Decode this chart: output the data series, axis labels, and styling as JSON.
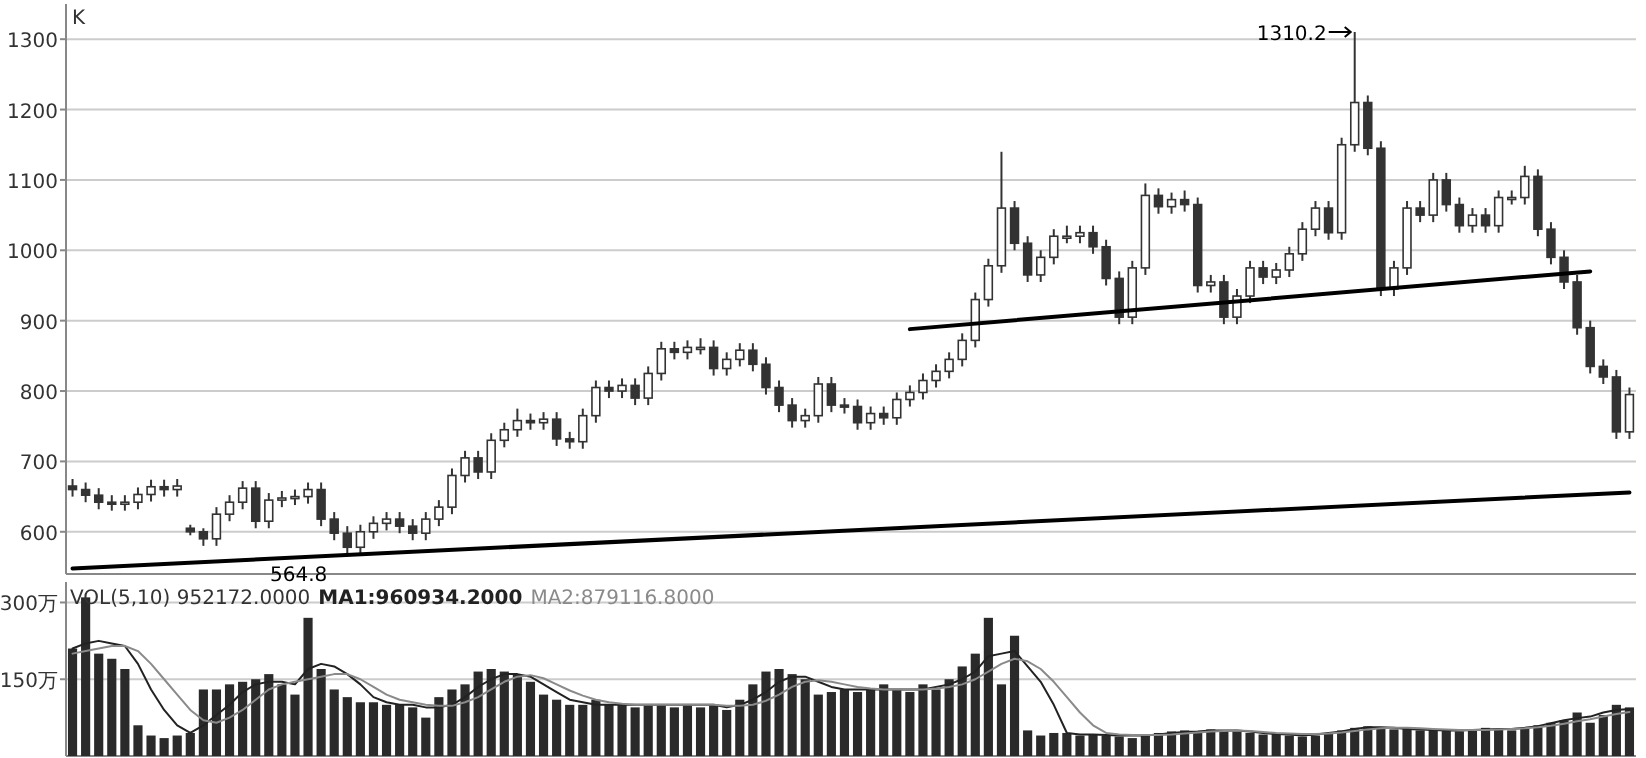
{
  "chart_data": [
    {
      "type": "candlestick",
      "ylabel": "K",
      "color": "#333333",
      "grid": "y",
      "ylim": [
        540,
        1350
      ],
      "yticks": [
        600,
        700,
        800,
        900,
        1000,
        1100,
        1200,
        1300
      ],
      "categories": [
        null,
        null,
        null,
        null,
        null,
        null,
        null,
        null,
        null,
        null,
        null,
        null,
        null,
        null,
        null,
        null,
        null,
        null,
        null,
        null,
        null,
        null,
        null,
        null,
        null,
        null,
        null,
        null,
        null,
        null,
        null,
        null,
        null,
        null,
        null,
        null,
        null,
        null,
        null,
        null,
        null,
        null,
        null,
        null,
        null,
        null,
        null,
        null,
        null,
        null,
        null,
        null,
        null,
        null,
        null,
        null,
        null,
        null,
        null,
        null,
        null,
        null,
        null,
        null,
        null,
        null,
        null,
        null,
        null,
        null,
        null,
        null,
        null,
        null,
        null,
        null,
        null,
        null,
        null,
        null,
        null,
        null,
        null,
        null,
        null,
        null,
        null,
        null,
        null,
        null,
        null,
        null,
        null,
        null,
        null,
        null,
        null,
        null,
        null,
        null,
        null,
        null,
        null,
        null,
        null,
        null,
        null,
        null,
        null,
        null,
        null,
        null,
        null,
        null,
        null,
        null,
        null,
        null,
        null,
        null
      ],
      "ohlc": [
        [
          665,
          675,
          650,
          660
        ],
        [
          660,
          670,
          642,
          652
        ],
        [
          652,
          662,
          632,
          642
        ],
        [
          642,
          652,
          630,
          640
        ],
        [
          640,
          652,
          630,
          642
        ],
        [
          642,
          663,
          632,
          653
        ],
        [
          653,
          674,
          643,
          664
        ],
        [
          664,
          674,
          650,
          660
        ],
        [
          660,
          675,
          650,
          665
        ],
        [
          605,
          610,
          595,
          600
        ],
        [
          600,
          605,
          580,
          590
        ],
        [
          590,
          635,
          580,
          625
        ],
        [
          625,
          652,
          615,
          642
        ],
        [
          642,
          672,
          632,
          662
        ],
        [
          662,
          672,
          605,
          615
        ],
        [
          615,
          655,
          605,
          645
        ],
        [
          645,
          658,
          635,
          648
        ],
        [
          648,
          660,
          638,
          650
        ],
        [
          650,
          670,
          640,
          660
        ],
        [
          660,
          670,
          608,
          618
        ],
        [
          618,
          628,
          588,
          598
        ],
        [
          598,
          608,
          564.8,
          578
        ],
        [
          578,
          610,
          568,
          600
        ],
        [
          600,
          622,
          590,
          612
        ],
        [
          612,
          628,
          602,
          618
        ],
        [
          618,
          628,
          598,
          608
        ],
        [
          608,
          618,
          588,
          598
        ],
        [
          598,
          628,
          588,
          618
        ],
        [
          618,
          645,
          608,
          635
        ],
        [
          635,
          690,
          625,
          680
        ],
        [
          680,
          715,
          670,
          705
        ],
        [
          705,
          715,
          675,
          685
        ],
        [
          685,
          740,
          675,
          730
        ],
        [
          730,
          755,
          720,
          745
        ],
        [
          745,
          775,
          735,
          758
        ],
        [
          758,
          768,
          745,
          755
        ],
        [
          755,
          770,
          745,
          760
        ],
        [
          760,
          770,
          722,
          732
        ],
        [
          732,
          742,
          718,
          728
        ],
        [
          728,
          775,
          718,
          765
        ],
        [
          765,
          815,
          755,
          805
        ],
        [
          805,
          815,
          790,
          800
        ],
        [
          800,
          818,
          790,
          808
        ],
        [
          808,
          818,
          780,
          790
        ],
        [
          790,
          835,
          780,
          825
        ],
        [
          825,
          870,
          815,
          860
        ],
        [
          860,
          870,
          845,
          855
        ],
        [
          855,
          872,
          845,
          862
        ],
        [
          862,
          875,
          852,
          862
        ],
        [
          862,
          872,
          822,
          832
        ],
        [
          832,
          855,
          822,
          845
        ],
        [
          845,
          868,
          835,
          858
        ],
        [
          858,
          868,
          828,
          838
        ],
        [
          838,
          848,
          795,
          805
        ],
        [
          805,
          815,
          770,
          780
        ],
        [
          780,
          790,
          748,
          758
        ],
        [
          758,
          775,
          748,
          765
        ],
        [
          765,
          820,
          755,
          810
        ],
        [
          810,
          820,
          770,
          780
        ],
        [
          780,
          790,
          768,
          778
        ],
        [
          778,
          788,
          745,
          755
        ],
        [
          755,
          778,
          745,
          768
        ],
        [
          768,
          778,
          752,
          762
        ],
        [
          762,
          798,
          752,
          788
        ],
        [
          788,
          808,
          778,
          798
        ],
        [
          798,
          825,
          788,
          815
        ],
        [
          815,
          838,
          805,
          828
        ],
        [
          828,
          855,
          818,
          845
        ],
        [
          845,
          882,
          835,
          872
        ],
        [
          872,
          940,
          862,
          930
        ],
        [
          930,
          988,
          920,
          978
        ],
        [
          978,
          1140,
          968,
          1060
        ],
        [
          1060,
          1070,
          1000,
          1010
        ],
        [
          1010,
          1020,
          955,
          965
        ],
        [
          965,
          1000,
          955,
          990
        ],
        [
          990,
          1030,
          980,
          1020
        ],
        [
          1020,
          1035,
          1010,
          1020
        ],
        [
          1020,
          1035,
          1010,
          1025
        ],
        [
          1025,
          1035,
          995,
          1005
        ],
        [
          1005,
          1015,
          950,
          960
        ],
        [
          960,
          970,
          895,
          905
        ],
        [
          905,
          985,
          895,
          975
        ],
        [
          975,
          1095,
          965,
          1078
        ],
        [
          1078,
          1088,
          1052,
          1062
        ],
        [
          1062,
          1082,
          1052,
          1072
        ],
        [
          1072,
          1085,
          1055,
          1065
        ],
        [
          1065,
          1075,
          940,
          950
        ],
        [
          950,
          965,
          940,
          955
        ],
        [
          955,
          965,
          895,
          905
        ],
        [
          905,
          945,
          895,
          935
        ],
        [
          935,
          985,
          925,
          975
        ],
        [
          975,
          985,
          952,
          962
        ],
        [
          962,
          982,
          952,
          972
        ],
        [
          972,
          1005,
          962,
          995
        ],
        [
          995,
          1040,
          985,
          1030
        ],
        [
          1030,
          1070,
          1020,
          1060
        ],
        [
          1060,
          1070,
          1015,
          1025
        ],
        [
          1025,
          1160,
          1015,
          1150
        ],
        [
          1150,
          1310.2,
          1140,
          1210
        ],
        [
          1210,
          1220,
          1135,
          1145
        ],
        [
          1145,
          1155,
          935,
          945
        ],
        [
          945,
          985,
          935,
          975
        ],
        [
          975,
          1070,
          965,
          1060
        ],
        [
          1060,
          1070,
          1040,
          1050
        ],
        [
          1050,
          1110,
          1040,
          1100
        ],
        [
          1100,
          1110,
          1055,
          1065
        ],
        [
          1065,
          1075,
          1025,
          1035
        ],
        [
          1035,
          1060,
          1025,
          1050
        ],
        [
          1050,
          1060,
          1025,
          1035
        ],
        [
          1035,
          1085,
          1025,
          1075
        ],
        [
          1075,
          1085,
          1065,
          1075
        ],
        [
          1075,
          1120,
          1065,
          1105
        ],
        [
          1105,
          1115,
          1020,
          1030
        ],
        [
          1030,
          1040,
          980,
          990
        ],
        [
          990,
          1000,
          945,
          955
        ],
        [
          955,
          965,
          880,
          890
        ],
        [
          890,
          900,
          825,
          835
        ],
        [
          835,
          845,
          810,
          820
        ],
        [
          820,
          830,
          732,
          742
        ],
        [
          742,
          805,
          732,
          795
        ]
      ],
      "series": [
        {
          "type": "line",
          "color": "#000000",
          "values": [
            548,
            null,
            null,
            null,
            null,
            null,
            null,
            null,
            null,
            null,
            null,
            null,
            null,
            null,
            null,
            null,
            null,
            null,
            null,
            null,
            null,
            null,
            null,
            null,
            null,
            null,
            null,
            null,
            null,
            null,
            null,
            null,
            null,
            null,
            null,
            null,
            null,
            null,
            null,
            null,
            null,
            null,
            null,
            null,
            null,
            null,
            null,
            null,
            null,
            null,
            null,
            null,
            null,
            null,
            null,
            null,
            null,
            null,
            null,
            null,
            null,
            null,
            null,
            null,
            null,
            null,
            null,
            null,
            null,
            null,
            null,
            null,
            null,
            null,
            null,
            null,
            null,
            null,
            null,
            null,
            null,
            null,
            null,
            null,
            null,
            null,
            null,
            null,
            null,
            null,
            null,
            null,
            null,
            null,
            null,
            null,
            null,
            null,
            null,
            null,
            null,
            null,
            null,
            null,
            null,
            null,
            null,
            null,
            null,
            null,
            null,
            null,
            null,
            null,
            null,
            null,
            null,
            null,
            null,
            656
          ]
        },
        {
          "type": "line",
          "color": "#000000",
          "values": [
            null,
            null,
            null,
            null,
            null,
            null,
            null,
            null,
            null,
            null,
            null,
            null,
            null,
            null,
            null,
            null,
            null,
            null,
            null,
            null,
            null,
            null,
            null,
            null,
            null,
            null,
            null,
            null,
            null,
            null,
            null,
            null,
            null,
            null,
            null,
            null,
            null,
            null,
            null,
            null,
            null,
            null,
            null,
            null,
            null,
            null,
            null,
            null,
            null,
            null,
            null,
            null,
            null,
            null,
            null,
            null,
            null,
            null,
            null,
            null,
            null,
            null,
            null,
            null,
            888,
            null,
            null,
            null,
            null,
            null,
            null,
            null,
            null,
            null,
            null,
            null,
            null,
            null,
            null,
            null,
            null,
            null,
            null,
            null,
            null,
            null,
            null,
            null,
            null,
            null,
            null,
            null,
            null,
            null,
            null,
            null,
            null,
            null,
            null,
            null,
            null,
            null,
            null,
            null,
            null,
            null,
            null,
            null,
            null,
            null,
            null,
            null,
            null,
            null,
            null,
            null,
            970,
            null,
            null,
            null
          ]
        }
      ],
      "annotations": [
        "1310.2",
        "564.8"
      ]
    },
    {
      "type": "bar",
      "title": "VOL(5,10) 952172.0000",
      "legend": "top left",
      "grid": "y",
      "ylim": [
        0,
        340
      ],
      "yticks": [
        {
          "value": 150,
          "label": "150万"
        },
        {
          "value": 300,
          "label": "300万"
        }
      ],
      "categories": [
        null,
        null,
        null,
        null,
        null,
        null,
        null,
        null,
        null,
        null,
        null,
        null,
        null,
        null,
        null,
        null,
        null,
        null,
        null,
        null,
        null,
        null,
        null,
        null,
        null,
        null,
        null,
        null,
        null,
        null,
        null,
        null,
        null,
        null,
        null,
        null,
        null,
        null,
        null,
        null,
        null,
        null,
        null,
        null,
        null,
        null,
        null,
        null,
        null,
        null,
        null,
        null,
        null,
        null,
        null,
        null,
        null,
        null,
        null,
        null,
        null,
        null,
        null,
        null,
        null,
        null,
        null,
        null,
        null,
        null,
        null,
        null,
        null,
        null,
        null,
        null,
        null,
        null,
        null,
        null,
        null,
        null,
        null,
        null,
        null,
        null,
        null,
        null,
        null,
        null,
        null,
        null,
        null,
        null,
        null,
        null,
        null,
        null,
        null,
        null,
        null,
        null,
        null,
        null,
        null,
        null,
        null,
        null,
        null,
        null,
        null,
        null,
        null,
        null,
        null,
        null,
        null,
        null,
        null,
        null
      ],
      "series": [
        {
          "color": "#2a2a2a",
          "values": [
            210,
            310,
            200,
            190,
            170,
            60,
            40,
            35,
            40,
            45,
            130,
            130,
            140,
            145,
            150,
            160,
            140,
            120,
            270,
            170,
            130,
            115,
            105,
            105,
            100,
            100,
            95,
            75,
            115,
            130,
            140,
            165,
            170,
            165,
            160,
            145,
            120,
            110,
            100,
            100,
            110,
            100,
            100,
            95,
            100,
            100,
            95,
            100,
            95,
            100,
            90,
            110,
            140,
            165,
            170,
            160,
            150,
            120,
            125,
            130,
            125,
            130,
            140,
            130,
            125,
            140,
            130,
            150,
            175,
            200,
            270,
            140,
            235,
            50,
            40,
            45,
            45,
            40,
            42,
            40,
            38,
            35,
            40,
            45,
            48,
            50,
            48,
            52,
            50,
            48,
            45,
            42,
            45,
            40,
            38,
            40,
            45,
            50,
            55,
            58,
            55,
            52,
            55,
            50,
            52,
            50,
            48,
            52,
            55,
            52,
            50,
            55,
            60,
            65,
            70,
            85,
            65,
            80,
            100,
            95
          ]
        },
        {
          "type": "line",
          "name": "MA1:960934.2000",
          "color": "#222222",
          "values": [
            210,
            220,
            225,
            220,
            215,
            180,
            130,
            90,
            60,
            45,
            60,
            80,
            100,
            125,
            140,
            145,
            145,
            140,
            170,
            180,
            175,
            160,
            140,
            115,
            105,
            100,
            100,
            95,
            95,
            100,
            115,
            135,
            150,
            160,
            160,
            155,
            140,
            125,
            110,
            105,
            100,
            100,
            100,
            100,
            100,
            100,
            100,
            100,
            100,
            100,
            95,
            100,
            110,
            125,
            145,
            155,
            155,
            145,
            135,
            130,
            130,
            130,
            130,
            130,
            130,
            130,
            135,
            140,
            150,
            165,
            195,
            200,
            205,
            175,
            145,
            100,
            45,
            42,
            42,
            41,
            40,
            40,
            40,
            42,
            45,
            47,
            48,
            50,
            50,
            50,
            48,
            45,
            43,
            42,
            40,
            42,
            45,
            48,
            53,
            56,
            56,
            55,
            53,
            52,
            51,
            50,
            50,
            51,
            52,
            53,
            53,
            55,
            58,
            64,
            70,
            74,
            77,
            85,
            90,
            92
          ]
        },
        {
          "type": "line",
          "name": "MA2:879116.8000",
          "color": "#8a8a8a",
          "values": [
            200,
            205,
            210,
            215,
            215,
            205,
            180,
            150,
            120,
            90,
            70,
            65,
            75,
            90,
            110,
            130,
            140,
            145,
            150,
            155,
            160,
            160,
            150,
            135,
            120,
            110,
            105,
            100,
            98,
            98,
            105,
            115,
            130,
            145,
            155,
            158,
            152,
            140,
            128,
            118,
            110,
            105,
            102,
            100,
            100,
            100,
            100,
            100,
            100,
            100,
            98,
            98,
            100,
            108,
            120,
            135,
            145,
            148,
            145,
            140,
            135,
            132,
            130,
            130,
            130,
            130,
            132,
            135,
            140,
            150,
            165,
            180,
            190,
            185,
            170,
            145,
            115,
            85,
            60,
            45,
            42,
            41,
            41,
            41,
            42,
            44,
            46,
            48,
            49,
            50,
            49,
            47,
            45,
            44,
            43,
            43,
            44,
            46,
            49,
            52,
            54,
            55,
            55,
            54,
            53,
            52,
            51,
            51,
            51,
            52,
            53,
            54,
            56,
            59,
            63,
            68,
            72,
            77,
            82,
            86
          ]
        }
      ]
    }
  ]
}
